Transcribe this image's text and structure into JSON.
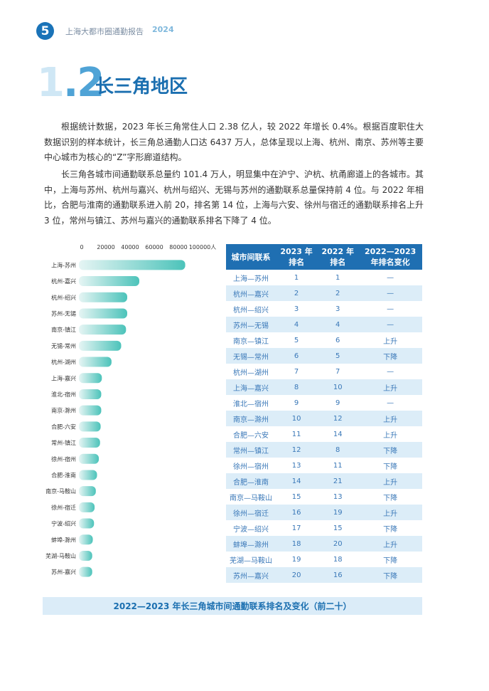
{
  "header": {
    "page_number": "5",
    "report_title": "上海大都市圈通勤报告",
    "report_year": "2024"
  },
  "section": {
    "number": "1.2",
    "title": "长三角地区"
  },
  "paragraphs": [
    "根据统计数据，2023 年长三角常住人口 2.38 亿人，较 2022 年增长 0.4%。根据百度职住大数据识别的样本统计，长三角总通勤人口达 6437 万人，总体呈现以上海、杭州、南京、苏州等主要中心城市为核心的“Z”字形廊道结构。",
    "长三角各城市间通勤联系总量约 101.4 万人，明显集中在沪宁、沪杭、杭甬廊道上的各城市。其中，上海与苏州、杭州与嘉兴、杭州与绍兴、无锡与苏州的通勤联系总量保持前 4 位。与 2022 年相比，合肥与淮南的通勤联系进入前 20，排名第 14 位，上海与六安、徐州与宿迁的通勤联系排名上升 3 位，常州与镇江、苏州与嘉兴的通勤联系排名下降了 4 位。"
  ],
  "chart_data": {
    "type": "bar",
    "orientation": "horizontal",
    "categories": [
      "上海-苏州",
      "杭州-嘉兴",
      "杭州-绍兴",
      "苏州-无锡",
      "南京-镇江",
      "无锡-常州",
      "杭州-湖州",
      "上海-嘉兴",
      "淮北-宿州",
      "南京-滁州",
      "合肥-六安",
      "常州-镇江",
      "徐州-宿州",
      "合肥-淮南",
      "南京-马鞍山",
      "徐州-宿迁",
      "宁波-绍兴",
      "蚌埠-滁州",
      "芜湖-马鞍山",
      "苏州-嘉兴"
    ],
    "values": [
      88000,
      50000,
      40000,
      40000,
      39000,
      35000,
      27000,
      19000,
      18500,
      18500,
      18000,
      17500,
      16500,
      15000,
      14000,
      13000,
      12500,
      11500,
      11000,
      11000
    ],
    "xticks": [
      "0",
      "20000",
      "40000",
      "60000",
      "80000",
      "100000人"
    ],
    "xlim": [
      0,
      100000
    ],
    "colors": {
      "bar_start": "#e6f5f4",
      "bar_end": "#4cc3ba"
    }
  },
  "table": {
    "headers": [
      "城市间联系",
      "2023 年\n排名",
      "2022 年\n排名",
      "2022—2023\n年排名变化"
    ],
    "rows": [
      [
        "上海—苏州",
        "1",
        "1",
        "—"
      ],
      [
        "杭州—嘉兴",
        "2",
        "2",
        "—"
      ],
      [
        "杭州—绍兴",
        "3",
        "3",
        "—"
      ],
      [
        "苏州—无锡",
        "4",
        "4",
        "—"
      ],
      [
        "南京—镇江",
        "5",
        "6",
        "上升"
      ],
      [
        "无锡—常州",
        "6",
        "5",
        "下降"
      ],
      [
        "杭州—湖州",
        "7",
        "7",
        "—"
      ],
      [
        "上海—嘉兴",
        "8",
        "10",
        "上升"
      ],
      [
        "淮北—宿州",
        "9",
        "9",
        "—"
      ],
      [
        "南京—滁州",
        "10",
        "12",
        "上升"
      ],
      [
        "合肥—六安",
        "11",
        "14",
        "上升"
      ],
      [
        "常州—镇江",
        "12",
        "8",
        "下降"
      ],
      [
        "徐州—宿州",
        "13",
        "11",
        "下降"
      ],
      [
        "合肥—淮南",
        "14",
        "21",
        "上升"
      ],
      [
        "南京—马鞍山",
        "15",
        "13",
        "下降"
      ],
      [
        "徐州—宿迁",
        "16",
        "19",
        "上升"
      ],
      [
        "宁波—绍兴",
        "17",
        "15",
        "下降"
      ],
      [
        "蚌埠—滁州",
        "18",
        "20",
        "上升"
      ],
      [
        "芜湖—马鞍山",
        "19",
        "18",
        "下降"
      ],
      [
        "苏州—嘉兴",
        "20",
        "16",
        "下降"
      ]
    ]
  },
  "caption": "2022—2023 年长三角城市间通勤联系排名及变化（前二十）"
}
